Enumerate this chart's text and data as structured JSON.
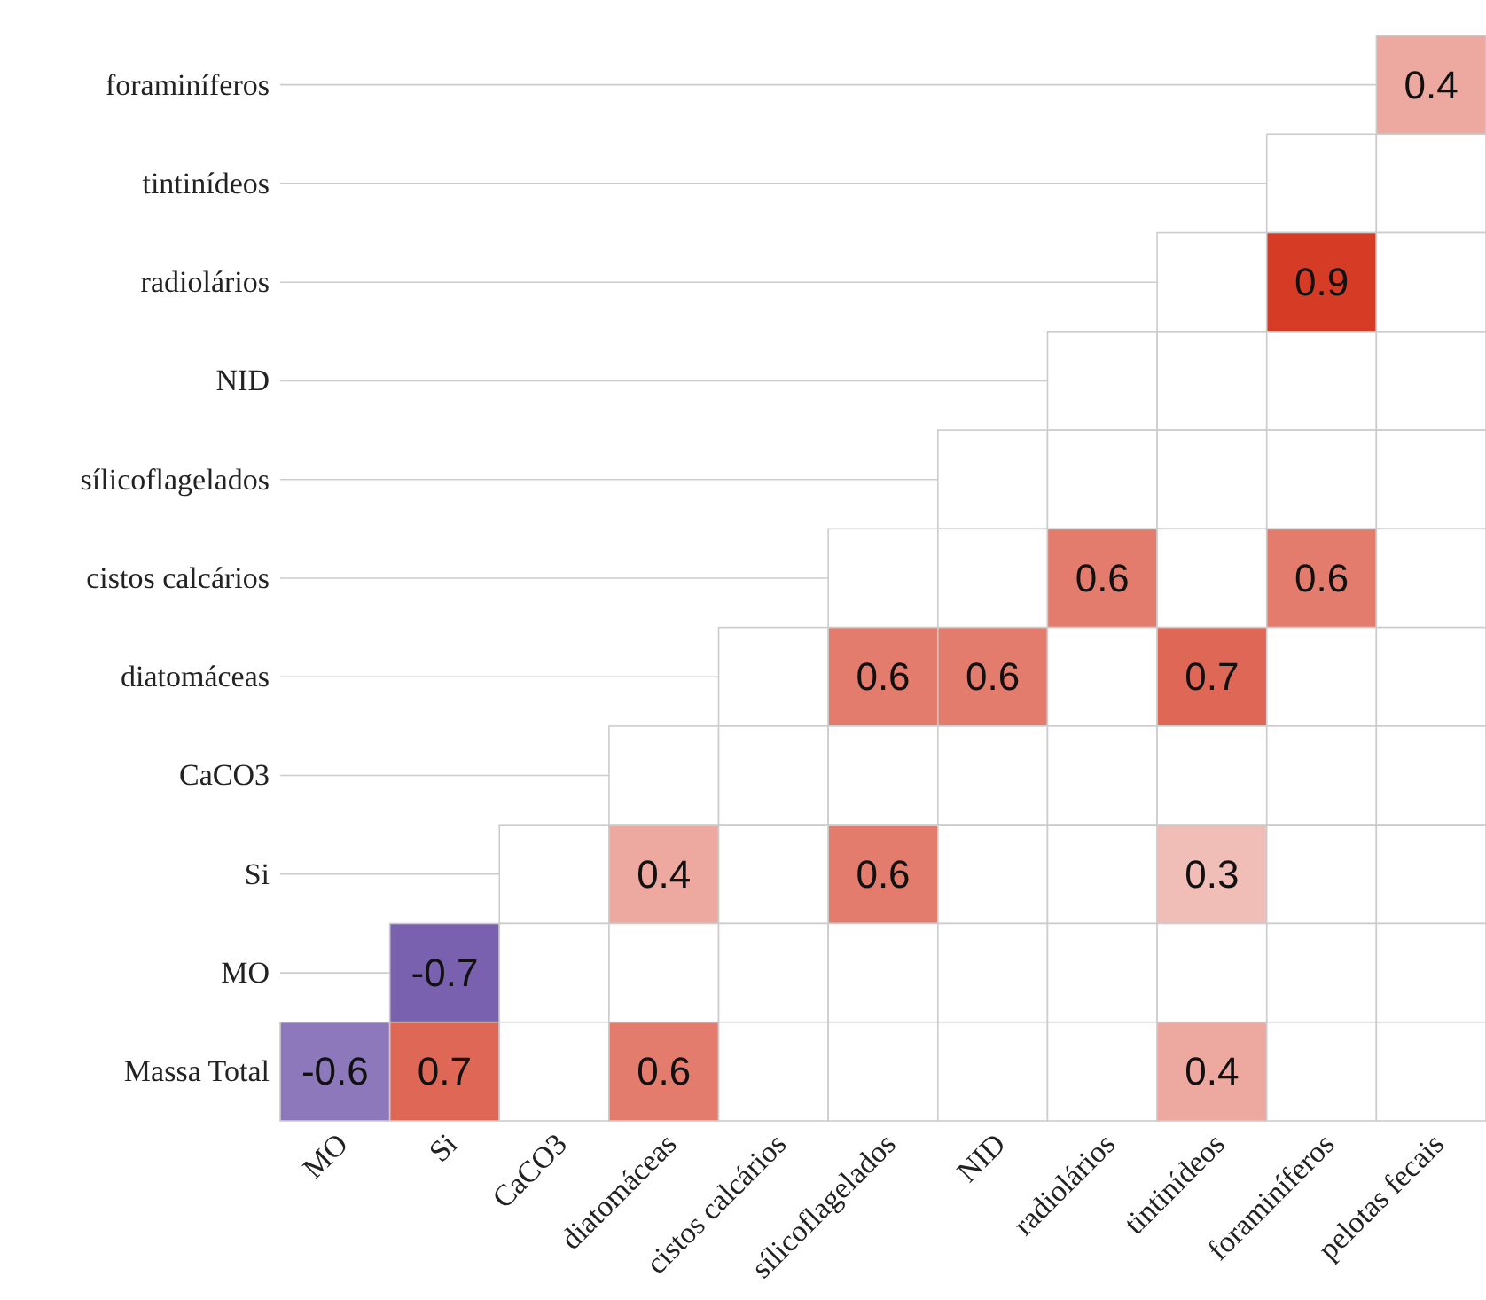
{
  "chart_data": {
    "type": "heatmap",
    "categories": [
      "MO",
      "Si",
      "CaCO3",
      "diatomáceas",
      "cistos calcários",
      "sílicoflagelados",
      "NID",
      "radiolários",
      "tintinídeos",
      "foraminíferos",
      "pelotas fecais"
    ],
    "y_categories": [
      "foraminíferos",
      "tintinídeos",
      "radiolários",
      "NID",
      "sílicoflagelados",
      "cistos calcários",
      "diatomáceas",
      "CaCO3",
      "Si",
      "MO",
      "Massa Total"
    ],
    "cells": [
      [
        null,
        null,
        null,
        null,
        null,
        null,
        null,
        null,
        null,
        null,
        0.4
      ],
      [
        null,
        null,
        null,
        null,
        null,
        null,
        null,
        null,
        null,
        null,
        null
      ],
      [
        null,
        null,
        null,
        null,
        null,
        null,
        null,
        null,
        null,
        0.9,
        null
      ],
      [
        null,
        null,
        null,
        null,
        null,
        null,
        null,
        null,
        null,
        null,
        null
      ],
      [
        null,
        null,
        null,
        null,
        null,
        null,
        null,
        null,
        null,
        null,
        null
      ],
      [
        null,
        null,
        null,
        null,
        null,
        null,
        null,
        0.6,
        null,
        0.6,
        null
      ],
      [
        null,
        null,
        null,
        null,
        null,
        0.6,
        0.6,
        null,
        0.7,
        null,
        null
      ],
      [
        null,
        null,
        null,
        null,
        null,
        null,
        null,
        null,
        null,
        null,
        null
      ],
      [
        null,
        null,
        null,
        0.4,
        null,
        0.6,
        null,
        null,
        0.3,
        null,
        null
      ],
      [
        null,
        -0.7,
        null,
        null,
        null,
        null,
        null,
        null,
        null,
        null,
        null
      ],
      [
        -0.6,
        0.7,
        null,
        0.6,
        null,
        null,
        null,
        null,
        0.4,
        null,
        null
      ]
    ],
    "data_labels": true,
    "grid": true
  }
}
